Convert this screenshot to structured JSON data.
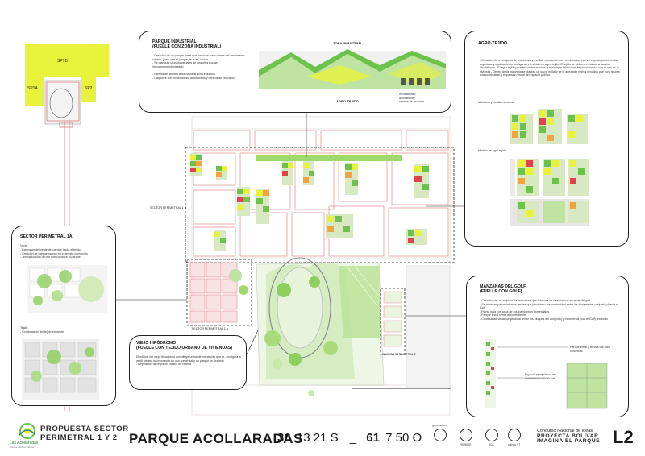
{
  "panels": {
    "parque_industrial": {
      "title": "PARQUE INDUSTRIAL\n(FUELLE CON ZONA INDUSTRIAL)",
      "text": "- Creación de un parque lineal que funciona como cierre del crecimiento urbano, junto con el parque de la es- tación.\n- Se plantean usos industriales de pequeña escala (microemprendimientos)\n\n- Barrera de árboles altos hacia la zona industrial\n- Galpones con incubadoras, laboratorios y centros de reciclado",
      "zona_label": "ZONA INDUSTRIAL",
      "agro_label": "AGRO-TEJIDO",
      "incubadoras_label": "Incubadoras/\nlaboratorios/\ncentros de reciclaje"
    },
    "agro_tejido": {
      "title": "AGRO-TEJIDO",
      "text": "- Creación de un conjunto de manzanas y medias manzanas que, combinadas con un espacio para huertas orgánicas y equipamiento configuran el módulo de agro-tejido. El tejido se ubica en relación a las vías circulatorias\n- El agro-tejido permite combinaciones que siempre relacionan espacios vacíos con el uso de la vivienda\n- Dentro de la manzana se plantea un vacío inicial y se le anexarán retiros privados que con- figuran una continuidad y expansión visual del espacio público.",
      "manzana_label": "Manzana y media manzana",
      "modulo_label": "Módulo de agro-tejido"
    },
    "sector_1a": {
      "title": "SECTOR PERIMETRAL 1A",
      "verde_label": "Verde",
      "verde_text": "- Extensión del verde del parque hacia el tejido.\n- Creación de parque natural en el ámbito construido\n- Jerarquización del eje que conduce al parque",
      "tejido_label": "Tejido",
      "tejido_text": "- Continuación del tejido existente"
    },
    "viejo_hipodromo": {
      "title": "VIEJO HIPÓDROMO\n(FUELLE CON TEJIDO URBANO DE VIVIENDAS)",
      "text": "El edificio del viejo Hipódromo constituye un borde construido que re- configura el perfil urbano incorporando un uso comercial y un parque se- lectado\n- Ampliación del espacio público de vereda"
    },
    "manzanas_golf": {
      "title": "MANZANAS DEL GOLF\n(FUELLE CON GOLF)",
      "text": "- Creación de un conjunto de manzanas que funciona en relación con el verde del golf.\n- Se plantean patios internos verdes que producen una continuidad entre los bloques del conjunto y hacia el Golf.\n- Planta baja con usos de equipamiento y comerciales\n- Parque lineal verde al contrafrente\n- Continuidad visual longitudinal (entre los bloques del conjunto) y transversal (con el Golf), excluido",
      "parque_label": "Parque lineal y recova con uso comercial",
      "espacio_label": "Espacio semipúblico de convivencia con el Golf"
    }
  },
  "map_labels": {
    "sp1b": "SP1B",
    "sp1a": "SP1A",
    "sp2": "SP2",
    "sector_1b": "SECTOR PERIMETRAL 1 B",
    "sector_1a": "SECTOR PERIMETRAL 1 A",
    "sector_2": "SECTOR PERIMETRAL 2"
  },
  "footer": {
    "logo_text": "Las Acollaradas",
    "logo_sub": "Parque Bolívar Parque",
    "sector_title": "PROPUESTA SECTOR\nPERIMETRAL 1 Y 2",
    "main_title": "PARQUE ACOLLARADAS",
    "coord_1": "36",
    "coord_2": "13 21 S",
    "coord_sep": "_",
    "coord_3": "61",
    "coord_4": "7 50 O",
    "sponsors": [
      "gobernación",
      "PROBIDE",
      "SCA",
      "colegio CT"
    ],
    "concurso": "Concurso Nacional de Ideas",
    "proyecto": "PROYECTA BOLÍVAR",
    "imagina": "IMAGINA EL PARQUE",
    "code": "L2"
  },
  "colors": {
    "green": "#6cc24a",
    "light_green": "#bfe3a0",
    "yellow": "#e8f23a",
    "orange": "#f2a53a",
    "red": "#e0444a",
    "grid_red": "#d9777b"
  }
}
